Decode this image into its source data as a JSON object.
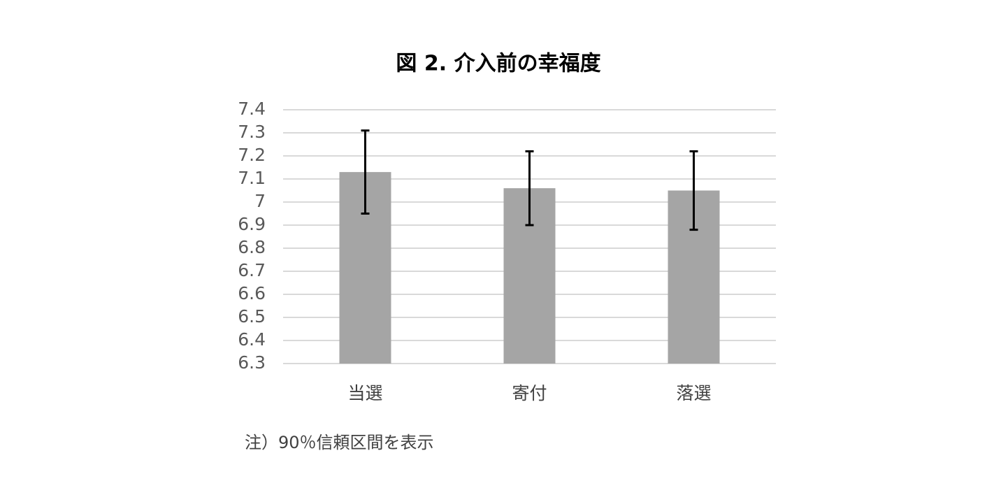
{
  "chart_data": {
    "type": "bar",
    "title": "図 2. 介入前の幸福度",
    "categories": [
      "当選",
      "寄付",
      "落選"
    ],
    "values": [
      7.13,
      7.06,
      7.05
    ],
    "errors": [
      0.18,
      0.16,
      0.17
    ],
    "color": "#a5a5a5",
    "error_color": "#000000",
    "ylim": [
      6.3,
      7.4
    ],
    "yticks": [
      6.3,
      6.4,
      6.5,
      6.6,
      6.7,
      6.8,
      6.9,
      7,
      7.1,
      7.2,
      7.3,
      7.4
    ],
    "grid": true,
    "note": "注）90％信頼区間を表示"
  }
}
